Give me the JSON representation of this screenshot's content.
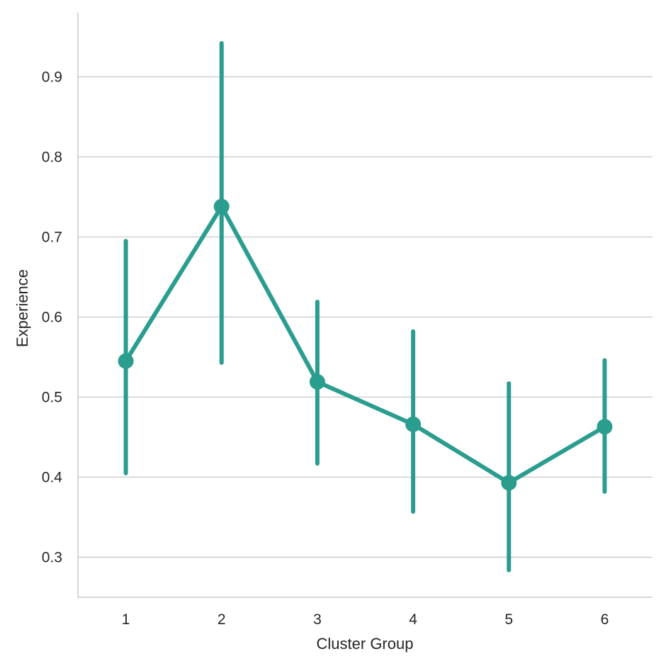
{
  "chart_data": {
    "type": "line",
    "categories": [
      "1",
      "2",
      "3",
      "4",
      "5",
      "6"
    ],
    "xlabel": "Cluster Group",
    "ylabel": "Experience",
    "ylim": [
      0.25,
      0.98
    ],
    "yticks": [
      "0.3",
      "0.4",
      "0.5",
      "0.6",
      "0.7",
      "0.8",
      "0.9"
    ],
    "grid": "horizontal",
    "color": "#2a9d8f",
    "series": [
      {
        "values": [
          0.545,
          0.738,
          0.519,
          0.466,
          0.393,
          0.463
        ],
        "ci_low": [
          0.405,
          0.543,
          0.417,
          0.357,
          0.284,
          0.382
        ],
        "ci_high": [
          0.695,
          0.942,
          0.619,
          0.582,
          0.517,
          0.546
        ]
      }
    ]
  }
}
